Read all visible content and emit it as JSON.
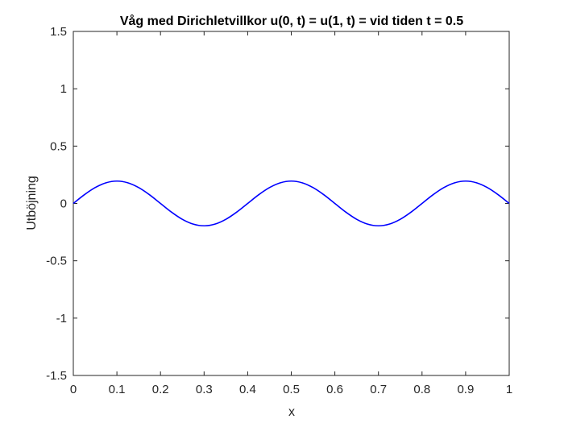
{
  "chart_data": {
    "type": "line",
    "title": "Våg med Dirichletvillkor u(0, t) = u(1, t) = vid tiden t = 0.5",
    "xlabel": "x",
    "ylabel": "Utböjning",
    "xlim": [
      0,
      1
    ],
    "ylim": [
      -1.5,
      1.5
    ],
    "x_ticks": [
      "0",
      "0.1",
      "0.2",
      "0.3",
      "0.4",
      "0.5",
      "0.6",
      "0.7",
      "0.8",
      "0.9",
      "1"
    ],
    "y_ticks": [
      "-1.5",
      "-1",
      "-0.5",
      "0",
      "0.5",
      "1",
      "1.5"
    ],
    "grid": false,
    "series": [
      {
        "color": "#0000ff",
        "x": [
          0,
          0.025,
          0.05,
          0.075,
          0.1,
          0.125,
          0.15,
          0.175,
          0.2,
          0.225,
          0.25,
          0.275,
          0.3,
          0.325,
          0.35,
          0.375,
          0.4,
          0.425,
          0.45,
          0.475,
          0.5,
          0.525,
          0.55,
          0.575,
          0.6,
          0.625,
          0.65,
          0.675,
          0.7,
          0.725,
          0.75,
          0.775,
          0.8,
          0.825,
          0.85,
          0.875,
          0.9,
          0.925,
          0.95,
          0.975,
          1
        ],
        "y": [
          0.0,
          0.075,
          0.138,
          0.18,
          0.195,
          0.18,
          0.138,
          0.075,
          0.0,
          -0.075,
          -0.138,
          -0.18,
          -0.195,
          -0.18,
          -0.138,
          -0.075,
          0.0,
          0.075,
          0.138,
          0.18,
          0.195,
          0.18,
          0.138,
          0.075,
          0.0,
          -0.075,
          -0.138,
          -0.18,
          -0.195,
          -0.18,
          -0.138,
          -0.075,
          0.0,
          0.075,
          0.138,
          0.18,
          0.195,
          0.18,
          0.138,
          0.075,
          0.0
        ]
      }
    ]
  }
}
